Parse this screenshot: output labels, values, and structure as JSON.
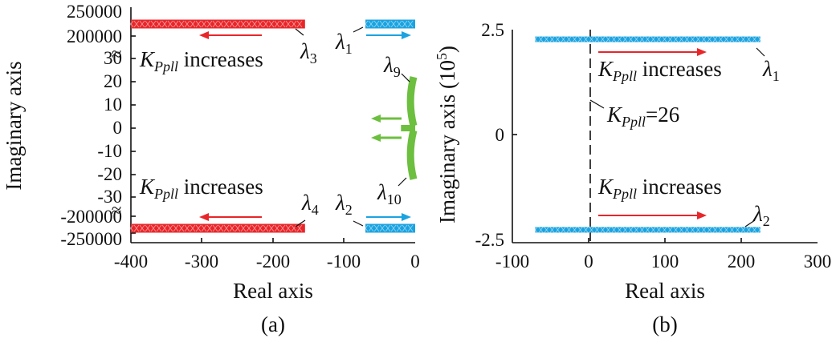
{
  "colors": {
    "red": "#e8262a",
    "blue": "#1ba3e0",
    "green": "#6cbf3f",
    "axis": "#111111"
  },
  "chart_data": [
    {
      "type": "scatter",
      "panel_label": "(a)",
      "xlabel": "Real axis",
      "ylabel": "Imaginary axis",
      "xlim": [
        -400,
        0
      ],
      "x_ticks": [
        "-400",
        "-300",
        "-200",
        "-100",
        "0"
      ],
      "y_ticks_upper": [
        "250000",
        "200000"
      ],
      "y_ticks_middle": [
        "30",
        "20",
        "10",
        "0",
        "-10",
        "-20",
        "-30"
      ],
      "y_ticks_lower": [
        "-200000",
        "-250000"
      ],
      "broken_axis_marks": [
        "≈",
        "≈"
      ],
      "series": [
        {
          "key": "l3",
          "color": "red",
          "x_range": [
            -400,
            -155
          ],
          "y": 230000,
          "label_main": "λ",
          "label_sub": "3"
        },
        {
          "key": "l4",
          "color": "red",
          "x_range": [
            -400,
            -155
          ],
          "y": -230000,
          "label_main": "λ",
          "label_sub": "4"
        },
        {
          "key": "l1",
          "color": "blue",
          "x_range": [
            -70,
            0
          ],
          "y": 230000,
          "label_main": "λ",
          "label_sub": "1"
        },
        {
          "key": "l2",
          "color": "blue",
          "x_range": [
            -70,
            0
          ],
          "y": -230000,
          "label_main": "λ",
          "label_sub": "2"
        },
        {
          "key": "l9",
          "color": "green",
          "x_range": [
            -20,
            0
          ],
          "y_range": [
            1,
            22
          ],
          "label_main": "λ",
          "label_sub": "9"
        },
        {
          "key": "l10",
          "color": "green",
          "x_range": [
            -20,
            0
          ],
          "y_range": [
            -22,
            -1
          ],
          "label_main": "λ",
          "label_sub": "10"
        }
      ],
      "annotations": [
        {
          "key": "inc_top",
          "main": "K",
          "sub": "Ppll",
          "rest": " increases"
        },
        {
          "key": "inc_bot",
          "main": "K",
          "sub": "Ppll",
          "rest": " increases"
        }
      ]
    },
    {
      "type": "scatter",
      "panel_label": "(b)",
      "xlabel": "Real axis",
      "ylabel_main": "Imaginary axis (10",
      "ylabel_sup": "5",
      "ylabel_end": ")",
      "xlim": [
        -100,
        300
      ],
      "ylim": [
        -2.5,
        2.5
      ],
      "x_ticks": [
        "-100",
        "0",
        "100",
        "200",
        "300"
      ],
      "y_ticks": [
        "2.5",
        "0",
        "-2.5"
      ],
      "series": [
        {
          "key": "l1",
          "color": "blue",
          "x_range": [
            -70,
            225
          ],
          "y": 2.27,
          "label_main": "λ",
          "label_sub": "1"
        },
        {
          "key": "l2",
          "color": "blue",
          "x_range": [
            -70,
            225
          ],
          "y": -2.27,
          "label_main": "λ",
          "label_sub": "2"
        }
      ],
      "annotations": [
        {
          "key": "inc_top",
          "main": "K",
          "sub": "Ppll",
          "rest": " increases"
        },
        {
          "key": "inc_bot",
          "main": "K",
          "sub": "Ppll",
          "rest": " increases"
        },
        {
          "key": "kp26",
          "main": "K",
          "sub": "Ppll",
          "rest": "=26",
          "x": 0
        }
      ]
    }
  ]
}
